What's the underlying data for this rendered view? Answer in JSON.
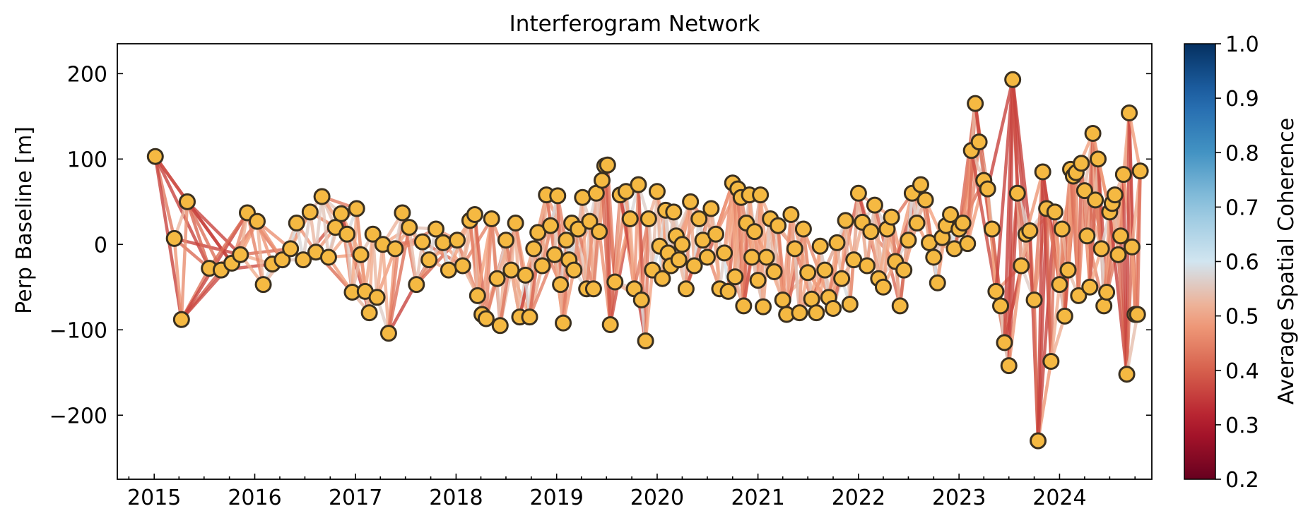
{
  "chart_data": {
    "type": "scatter",
    "title": "Interferogram Network",
    "xlabel": "",
    "ylabel": "Perp Baseline [m]",
    "xlim": [
      "2014-08-20",
      "2024-12-01"
    ],
    "ylim": [
      -275,
      235
    ],
    "x_ticks": [
      "2015",
      "2016",
      "2017",
      "2018",
      "2019",
      "2020",
      "2021",
      "2022",
      "2023",
      "2024"
    ],
    "y_ticks": [
      200,
      100,
      0,
      -100,
      -200
    ],
    "y_tick_labels": [
      "200",
      "100",
      "0",
      "−100",
      "−200"
    ],
    "grid": false,
    "colorbar": {
      "label": "Average Spatial Coherence",
      "range": [
        0.2,
        1.0
      ],
      "ticks": [
        "1.0",
        "0.9",
        "0.8",
        "0.7",
        "0.6",
        "0.5",
        "0.4",
        "0.3",
        "0.2"
      ],
      "tick_values": [
        1.0,
        0.9,
        0.8,
        0.7,
        0.6,
        0.5,
        0.4,
        0.3,
        0.2
      ],
      "colormap": "RdBu",
      "colors": [
        "#67001f",
        "#b2182b",
        "#d6604d",
        "#f4a582",
        "#d1e5f0",
        "#92c5de",
        "#4393c3",
        "#2166ac",
        "#053061"
      ]
    },
    "acquisitions": [
      {
        "date": "2015-01-05",
        "bperp": 103
      },
      {
        "date": "2015-03-15",
        "bperp": 7
      },
      {
        "date": "2015-04-10",
        "bperp": -88
      },
      {
        "date": "2015-05-01",
        "bperp": 50
      },
      {
        "date": "2015-07-20",
        "bperp": -28
      },
      {
        "date": "2015-09-01",
        "bperp": -30
      },
      {
        "date": "2015-10-10",
        "bperp": -22
      },
      {
        "date": "2015-11-10",
        "bperp": -12
      },
      {
        "date": "2015-12-05",
        "bperp": 37
      },
      {
        "date": "2016-01-10",
        "bperp": 27
      },
      {
        "date": "2016-02-01",
        "bperp": -47
      },
      {
        "date": "2016-03-05",
        "bperp": -23
      },
      {
        "date": "2016-04-10",
        "bperp": -18
      },
      {
        "date": "2016-05-10",
        "bperp": -5
      },
      {
        "date": "2016-06-01",
        "bperp": 25
      },
      {
        "date": "2016-06-25",
        "bperp": -18
      },
      {
        "date": "2016-07-20",
        "bperp": 38
      },
      {
        "date": "2016-08-10",
        "bperp": -9
      },
      {
        "date": "2016-09-01",
        "bperp": 56
      },
      {
        "date": "2016-09-25",
        "bperp": -15
      },
      {
        "date": "2016-10-20",
        "bperp": 20
      },
      {
        "date": "2016-11-10",
        "bperp": 36
      },
      {
        "date": "2016-12-01",
        "bperp": 12
      },
      {
        "date": "2016-12-20",
        "bperp": -56
      },
      {
        "date": "2017-01-05",
        "bperp": 42
      },
      {
        "date": "2017-01-20",
        "bperp": -12
      },
      {
        "date": "2017-02-05",
        "bperp": -55
      },
      {
        "date": "2017-02-20",
        "bperp": -80
      },
      {
        "date": "2017-03-05",
        "bperp": 12
      },
      {
        "date": "2017-03-20",
        "bperp": -62
      },
      {
        "date": "2017-04-10",
        "bperp": 0
      },
      {
        "date": "2017-05-01",
        "bperp": -104
      },
      {
        "date": "2017-05-25",
        "bperp": -5
      },
      {
        "date": "2017-06-20",
        "bperp": 37
      },
      {
        "date": "2017-07-15",
        "bperp": 20
      },
      {
        "date": "2017-08-10",
        "bperp": -47
      },
      {
        "date": "2017-09-01",
        "bperp": 3
      },
      {
        "date": "2017-09-25",
        "bperp": -18
      },
      {
        "date": "2017-10-20",
        "bperp": 18
      },
      {
        "date": "2017-11-15",
        "bperp": 2
      },
      {
        "date": "2017-12-05",
        "bperp": -30
      },
      {
        "date": "2018-01-05",
        "bperp": 5
      },
      {
        "date": "2018-01-25",
        "bperp": -25
      },
      {
        "date": "2018-02-20",
        "bperp": 28
      },
      {
        "date": "2018-03-10",
        "bperp": 35
      },
      {
        "date": "2018-03-20",
        "bperp": -60
      },
      {
        "date": "2018-04-05",
        "bperp": -82
      },
      {
        "date": "2018-04-20",
        "bperp": -87
      },
      {
        "date": "2018-05-10",
        "bperp": 30
      },
      {
        "date": "2018-05-30",
        "bperp": -40
      },
      {
        "date": "2018-06-10",
        "bperp": -95
      },
      {
        "date": "2018-07-01",
        "bperp": 5
      },
      {
        "date": "2018-07-20",
        "bperp": -30
      },
      {
        "date": "2018-08-05",
        "bperp": 25
      },
      {
        "date": "2018-08-20",
        "bperp": -85
      },
      {
        "date": "2018-09-10",
        "bperp": -36
      },
      {
        "date": "2018-09-25",
        "bperp": -85
      },
      {
        "date": "2018-10-10",
        "bperp": -5
      },
      {
        "date": "2018-10-25",
        "bperp": 14
      },
      {
        "date": "2018-11-10",
        "bperp": -25
      },
      {
        "date": "2018-11-25",
        "bperp": 58
      },
      {
        "date": "2018-12-10",
        "bperp": 22
      },
      {
        "date": "2018-12-25",
        "bperp": -12
      },
      {
        "date": "2019-01-05",
        "bperp": 57
      },
      {
        "date": "2019-01-15",
        "bperp": -47
      },
      {
        "date": "2019-01-25",
        "bperp": -92
      },
      {
        "date": "2019-02-05",
        "bperp": 5
      },
      {
        "date": "2019-02-15",
        "bperp": -18
      },
      {
        "date": "2019-02-25",
        "bperp": 25
      },
      {
        "date": "2019-03-05",
        "bperp": -30
      },
      {
        "date": "2019-03-20",
        "bperp": 18
      },
      {
        "date": "2019-04-05",
        "bperp": 55
      },
      {
        "date": "2019-04-20",
        "bperp": -52
      },
      {
        "date": "2019-05-01",
        "bperp": 27
      },
      {
        "date": "2019-05-15",
        "bperp": -52
      },
      {
        "date": "2019-05-25",
        "bperp": 60
      },
      {
        "date": "2019-06-05",
        "bperp": 15
      },
      {
        "date": "2019-06-15",
        "bperp": 75
      },
      {
        "date": "2019-06-25",
        "bperp": 92
      },
      {
        "date": "2019-07-05",
        "bperp": 93
      },
      {
        "date": "2019-07-15",
        "bperp": -94
      },
      {
        "date": "2019-08-01",
        "bperp": -44
      },
      {
        "date": "2019-08-20",
        "bperp": 58
      },
      {
        "date": "2019-09-10",
        "bperp": 62
      },
      {
        "date": "2019-09-25",
        "bperp": 30
      },
      {
        "date": "2019-10-10",
        "bperp": -52
      },
      {
        "date": "2019-10-25",
        "bperp": 70
      },
      {
        "date": "2019-11-05",
        "bperp": -65
      },
      {
        "date": "2019-11-20",
        "bperp": -113
      },
      {
        "date": "2019-12-01",
        "bperp": 30
      },
      {
        "date": "2019-12-15",
        "bperp": -30
      },
      {
        "date": "2020-01-01",
        "bperp": 62
      },
      {
        "date": "2020-01-10",
        "bperp": -2
      },
      {
        "date": "2020-01-20",
        "bperp": -40
      },
      {
        "date": "2020-02-01",
        "bperp": 40
      },
      {
        "date": "2020-02-10",
        "bperp": -10
      },
      {
        "date": "2020-02-20",
        "bperp": -25
      },
      {
        "date": "2020-03-01",
        "bperp": 38
      },
      {
        "date": "2020-03-10",
        "bperp": 10
      },
      {
        "date": "2020-03-20",
        "bperp": -18
      },
      {
        "date": "2020-04-01",
        "bperp": 0
      },
      {
        "date": "2020-04-15",
        "bperp": -52
      },
      {
        "date": "2020-05-01",
        "bperp": 50
      },
      {
        "date": "2020-05-15",
        "bperp": -25
      },
      {
        "date": "2020-06-01",
        "bperp": 30
      },
      {
        "date": "2020-06-15",
        "bperp": 5
      },
      {
        "date": "2020-07-01",
        "bperp": -15
      },
      {
        "date": "2020-07-15",
        "bperp": 42
      },
      {
        "date": "2020-08-01",
        "bperp": 12
      },
      {
        "date": "2020-08-15",
        "bperp": -52
      },
      {
        "date": "2020-09-01",
        "bperp": -10
      },
      {
        "date": "2020-09-15",
        "bperp": -55
      },
      {
        "date": "2020-10-01",
        "bperp": 72
      },
      {
        "date": "2020-10-10",
        "bperp": -38
      },
      {
        "date": "2020-10-20",
        "bperp": 65
      },
      {
        "date": "2020-11-01",
        "bperp": 55
      },
      {
        "date": "2020-11-10",
        "bperp": -72
      },
      {
        "date": "2020-11-20",
        "bperp": 25
      },
      {
        "date": "2020-12-01",
        "bperp": 58
      },
      {
        "date": "2020-12-10",
        "bperp": -15
      },
      {
        "date": "2020-12-20",
        "bperp": 15
      },
      {
        "date": "2021-01-01",
        "bperp": -42
      },
      {
        "date": "2021-01-10",
        "bperp": 58
      },
      {
        "date": "2021-01-20",
        "bperp": -73
      },
      {
        "date": "2021-02-01",
        "bperp": -15
      },
      {
        "date": "2021-02-15",
        "bperp": 30
      },
      {
        "date": "2021-03-01",
        "bperp": -32
      },
      {
        "date": "2021-03-15",
        "bperp": 22
      },
      {
        "date": "2021-04-01",
        "bperp": -65
      },
      {
        "date": "2021-04-15",
        "bperp": -82
      },
      {
        "date": "2021-05-01",
        "bperp": 35
      },
      {
        "date": "2021-05-15",
        "bperp": -5
      },
      {
        "date": "2021-06-01",
        "bperp": -80
      },
      {
        "date": "2021-06-15",
        "bperp": 18
      },
      {
        "date": "2021-07-01",
        "bperp": -33
      },
      {
        "date": "2021-07-15",
        "bperp": -64
      },
      {
        "date": "2021-08-01",
        "bperp": -80
      },
      {
        "date": "2021-08-15",
        "bperp": -2
      },
      {
        "date": "2021-09-01",
        "bperp": -30
      },
      {
        "date": "2021-09-15",
        "bperp": -62
      },
      {
        "date": "2021-10-01",
        "bperp": -75
      },
      {
        "date": "2021-10-15",
        "bperp": 2
      },
      {
        "date": "2021-11-01",
        "bperp": -40
      },
      {
        "date": "2021-11-15",
        "bperp": 28
      },
      {
        "date": "2021-12-01",
        "bperp": -70
      },
      {
        "date": "2021-12-15",
        "bperp": -18
      },
      {
        "date": "2022-01-01",
        "bperp": 60
      },
      {
        "date": "2022-01-15",
        "bperp": 26
      },
      {
        "date": "2022-02-01",
        "bperp": -25
      },
      {
        "date": "2022-02-15",
        "bperp": 15
      },
      {
        "date": "2022-03-01",
        "bperp": 46
      },
      {
        "date": "2022-03-15",
        "bperp": -40
      },
      {
        "date": "2022-04-01",
        "bperp": -50
      },
      {
        "date": "2022-04-15",
        "bperp": 18
      },
      {
        "date": "2022-05-01",
        "bperp": 32
      },
      {
        "date": "2022-05-15",
        "bperp": -20
      },
      {
        "date": "2022-06-01",
        "bperp": -72
      },
      {
        "date": "2022-06-15",
        "bperp": -30
      },
      {
        "date": "2022-07-01",
        "bperp": 5
      },
      {
        "date": "2022-07-15",
        "bperp": 60
      },
      {
        "date": "2022-08-01",
        "bperp": 25
      },
      {
        "date": "2022-08-15",
        "bperp": 70
      },
      {
        "date": "2022-09-01",
        "bperp": 52
      },
      {
        "date": "2022-09-15",
        "bperp": 2
      },
      {
        "date": "2022-10-01",
        "bperp": -15
      },
      {
        "date": "2022-10-15",
        "bperp": -45
      },
      {
        "date": "2022-11-01",
        "bperp": 8
      },
      {
        "date": "2022-11-15",
        "bperp": 22
      },
      {
        "date": "2022-12-01",
        "bperp": 35
      },
      {
        "date": "2022-12-15",
        "bperp": -5
      },
      {
        "date": "2023-01-01",
        "bperp": 18
      },
      {
        "date": "2023-01-15",
        "bperp": 25
      },
      {
        "date": "2023-02-01",
        "bperp": 1
      },
      {
        "date": "2023-02-15",
        "bperp": 110
      },
      {
        "date": "2023-03-01",
        "bperp": 165
      },
      {
        "date": "2023-03-15",
        "bperp": 120
      },
      {
        "date": "2023-04-01",
        "bperp": 75
      },
      {
        "date": "2023-04-15",
        "bperp": 65
      },
      {
        "date": "2023-05-01",
        "bperp": 18
      },
      {
        "date": "2023-05-15",
        "bperp": -55
      },
      {
        "date": "2023-06-01",
        "bperp": -72
      },
      {
        "date": "2023-06-15",
        "bperp": -115
      },
      {
        "date": "2023-07-01",
        "bperp": -142
      },
      {
        "date": "2023-07-15",
        "bperp": 193
      },
      {
        "date": "2023-08-01",
        "bperp": 60
      },
      {
        "date": "2023-08-15",
        "bperp": -25
      },
      {
        "date": "2023-09-01",
        "bperp": 12
      },
      {
        "date": "2023-09-15",
        "bperp": 16
      },
      {
        "date": "2023-10-01",
        "bperp": -65
      },
      {
        "date": "2023-10-15",
        "bperp": -230
      },
      {
        "date": "2023-11-01",
        "bperp": 85
      },
      {
        "date": "2023-11-15",
        "bperp": 42
      },
      {
        "date": "2023-12-01",
        "bperp": -137
      },
      {
        "date": "2023-12-15",
        "bperp": 38
      },
      {
        "date": "2024-01-01",
        "bperp": -47
      },
      {
        "date": "2024-01-10",
        "bperp": 18
      },
      {
        "date": "2024-01-20",
        "bperp": -84
      },
      {
        "date": "2024-02-01",
        "bperp": -30
      },
      {
        "date": "2024-02-10",
        "bperp": 88
      },
      {
        "date": "2024-02-20",
        "bperp": 80
      },
      {
        "date": "2024-03-01",
        "bperp": 84
      },
      {
        "date": "2024-03-10",
        "bperp": -60
      },
      {
        "date": "2024-03-20",
        "bperp": 95
      },
      {
        "date": "2024-04-01",
        "bperp": 63
      },
      {
        "date": "2024-04-10",
        "bperp": 10
      },
      {
        "date": "2024-04-20",
        "bperp": -50
      },
      {
        "date": "2024-05-01",
        "bperp": 130
      },
      {
        "date": "2024-05-10",
        "bperp": 52
      },
      {
        "date": "2024-05-20",
        "bperp": 100
      },
      {
        "date": "2024-06-01",
        "bperp": -5
      },
      {
        "date": "2024-06-10",
        "bperp": -72
      },
      {
        "date": "2024-06-20",
        "bperp": -56
      },
      {
        "date": "2024-07-01",
        "bperp": 38
      },
      {
        "date": "2024-07-10",
        "bperp": 48
      },
      {
        "date": "2024-07-20",
        "bperp": 58
      },
      {
        "date": "2024-08-01",
        "bperp": -12
      },
      {
        "date": "2024-08-10",
        "bperp": 10
      },
      {
        "date": "2024-08-20",
        "bperp": 82
      },
      {
        "date": "2024-09-01",
        "bperp": -152
      },
      {
        "date": "2024-09-10",
        "bperp": 154
      },
      {
        "date": "2024-09-20",
        "bperp": -3
      },
      {
        "date": "2024-10-01",
        "bperp": -82
      },
      {
        "date": "2024-10-10",
        "bperp": -82
      },
      {
        "date": "2024-10-20",
        "bperp": 86
      }
    ]
  }
}
